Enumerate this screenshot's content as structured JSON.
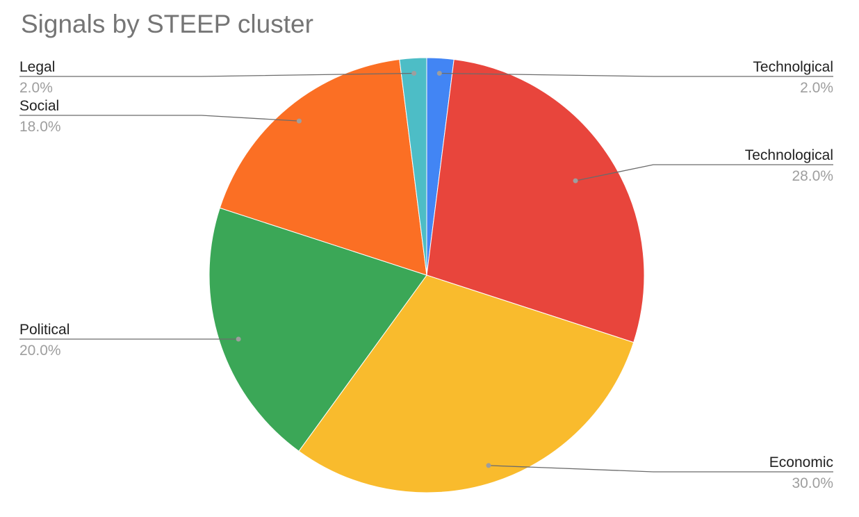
{
  "chart_data": {
    "type": "pie",
    "title": "Signals by STEEP cluster",
    "slices": [
      {
        "label": "Technolgical",
        "value": 2.0,
        "display": "2.0%",
        "color": "#4285f4"
      },
      {
        "label": "Technological",
        "value": 28.0,
        "display": "28.0%",
        "color": "#e8453c"
      },
      {
        "label": "Economic",
        "value": 30.0,
        "display": "30.0%",
        "color": "#f9bb2d"
      },
      {
        "label": "Political",
        "value": 20.0,
        "display": "20.0%",
        "color": "#3ba757"
      },
      {
        "label": "Social",
        "value": 18.0,
        "display": "18.0%",
        "color": "#fb6f24"
      },
      {
        "label": "Legal",
        "value": 2.0,
        "display": "2.0%",
        "color": "#4dbdc6"
      }
    ],
    "legend": "none",
    "data_labels": "outside with leader lines"
  }
}
